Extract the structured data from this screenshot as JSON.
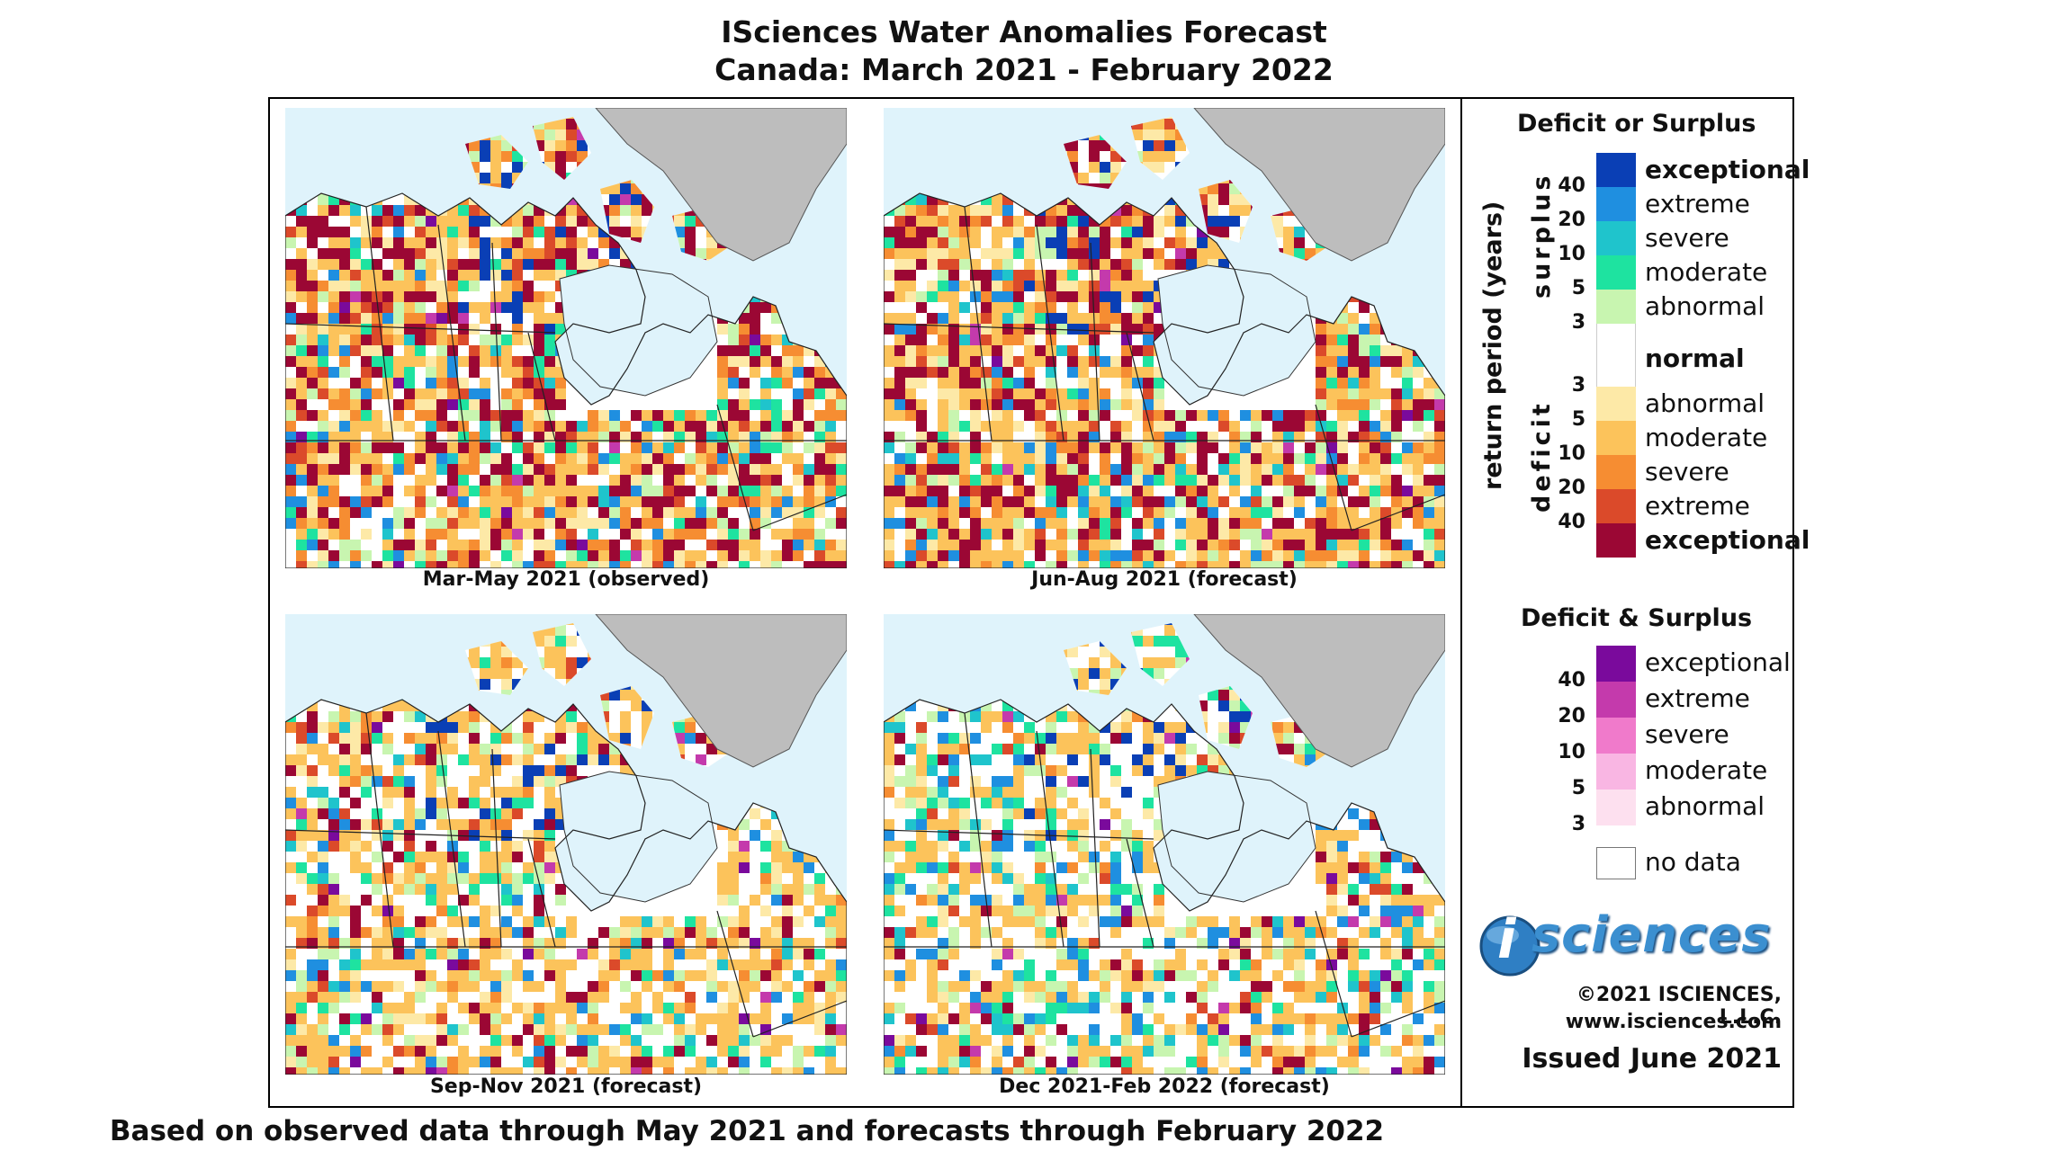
{
  "header": {
    "title_line1": "ISciences Water Anomalies Forecast",
    "title_line2": "Canada: March 2021 - February 2022"
  },
  "panels": [
    {
      "caption": "Mar-May 2021 (observed)"
    },
    {
      "caption": "Jun-Aug 2021 (forecast)"
    },
    {
      "caption": "Sep-Nov 2021 (forecast)"
    },
    {
      "caption": "Dec 2021-Feb 2022 (forecast)"
    }
  ],
  "legend": {
    "title1": "Deficit or Surplus",
    "axis_label": "return period (years)",
    "surplus_label": "surplus",
    "deficit_label": "deficit",
    "surplus_categories": [
      {
        "label": "exceptional",
        "color": "#0a3fb5",
        "bold": true
      },
      {
        "label": "extreme",
        "color": "#1f8fe0",
        "bold": false
      },
      {
        "label": "severe",
        "color": "#1fc4cc",
        "bold": false
      },
      {
        "label": "moderate",
        "color": "#1ee3a0",
        "bold": false
      },
      {
        "label": "abnormal",
        "color": "#c8f5b0",
        "bold": false
      }
    ],
    "normal_label": "normal",
    "deficit_categories": [
      {
        "label": "abnormal",
        "color": "#fde9a7",
        "bold": false
      },
      {
        "label": "moderate",
        "color": "#fcc35b",
        "bold": false
      },
      {
        "label": "severe",
        "color": "#f68d32",
        "bold": false
      },
      {
        "label": "extreme",
        "color": "#db4a2a",
        "bold": false
      },
      {
        "label": "exceptional",
        "color": "#9b0734",
        "bold": true
      }
    ],
    "surplus_ticks": [
      "40",
      "20",
      "10",
      "5",
      "3"
    ],
    "deficit_ticks": [
      "3",
      "5",
      "10",
      "20",
      "40"
    ],
    "title2": "Deficit & Surplus",
    "both_categories": [
      {
        "label": "exceptional",
        "color": "#7a0a9c"
      },
      {
        "label": "extreme",
        "color": "#c43aac"
      },
      {
        "label": "severe",
        "color": "#f07acb"
      },
      {
        "label": "moderate",
        "color": "#f9b6e3"
      },
      {
        "label": "abnormal",
        "color": "#fde0ef"
      }
    ],
    "both_ticks": [
      "40",
      "20",
      "10",
      "5",
      "3"
    ],
    "no_data_label": "no data",
    "no_data_color": "#bdbdbd"
  },
  "branding": {
    "logo_letter": "i",
    "logo_word": "sciences",
    "copyright": "©2021 ISCIENCES, L.L.C.",
    "website": "www.isciences.com",
    "issued": "Issued June 2021"
  },
  "footer": "Based on observed data through May 2021 and forecasts through February 2022"
}
